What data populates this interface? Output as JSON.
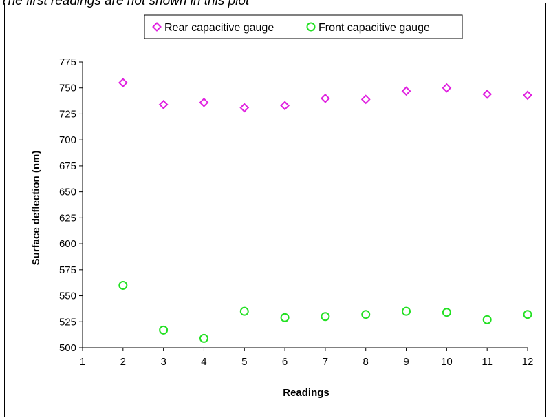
{
  "page": {
    "note": "The first readings are not shown in this plot"
  },
  "chart_data": {
    "type": "scatter",
    "title": "",
    "xlabel": "Readings",
    "ylabel": "Surface deflection (nm)",
    "xlim": [
      1,
      12
    ],
    "ylim": [
      500,
      775
    ],
    "x_ticks": [
      1,
      2,
      3,
      4,
      5,
      6,
      7,
      8,
      9,
      10,
      11,
      12
    ],
    "y_ticks": [
      500,
      525,
      550,
      575,
      600,
      625,
      650,
      675,
      700,
      725,
      750,
      775
    ],
    "grid": false,
    "legend_position": "top",
    "series": [
      {
        "name": "Rear capacitive gauge",
        "marker": "diamond",
        "color": "#E020E0",
        "x": [
          2,
          3,
          4,
          5,
          6,
          7,
          8,
          9,
          10,
          11,
          12
        ],
        "y": [
          755,
          734,
          736,
          731,
          733,
          740,
          739,
          747,
          750,
          744,
          743
        ]
      },
      {
        "name": "Front capacitive gauge",
        "marker": "circle",
        "color": "#22E022",
        "x": [
          2,
          3,
          4,
          5,
          6,
          7,
          8,
          9,
          10,
          11,
          12
        ],
        "y": [
          560,
          517,
          509,
          535,
          529,
          530,
          532,
          535,
          534,
          527,
          532
        ]
      }
    ]
  }
}
